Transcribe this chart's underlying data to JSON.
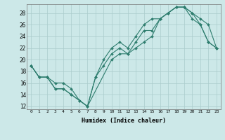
{
  "xlabel": "Humidex (Indice chaleur)",
  "line_color": "#2e7d6e",
  "bg_color": "#cce8e8",
  "grid_color": "#aacccc",
  "xlim": [
    -0.5,
    23.5
  ],
  "ylim": [
    11.5,
    29.5
  ],
  "xticks": [
    0,
    1,
    2,
    3,
    4,
    5,
    6,
    7,
    8,
    9,
    10,
    11,
    12,
    13,
    14,
    15,
    16,
    17,
    18,
    19,
    20,
    21,
    22,
    23
  ],
  "yticks": [
    12,
    14,
    16,
    18,
    20,
    22,
    24,
    26,
    28
  ],
  "line1_x": [
    0,
    1,
    2,
    3,
    4,
    5,
    6,
    7,
    8,
    9,
    10,
    11,
    12,
    13,
    14,
    15,
    16,
    17,
    18,
    19,
    20,
    21,
    22,
    23
  ],
  "line1_y": [
    19,
    17,
    17,
    15,
    15,
    14,
    13,
    12,
    17,
    19,
    21,
    22,
    21,
    23,
    25,
    25,
    27,
    28,
    29,
    29,
    27,
    26,
    23,
    22
  ],
  "line2_x": [
    0,
    1,
    2,
    3,
    4,
    5,
    6,
    7,
    8,
    9,
    10,
    11,
    12,
    13,
    14,
    15,
    16,
    17,
    18,
    19,
    20,
    21,
    22,
    23
  ],
  "line2_y": [
    19,
    17,
    17,
    16,
    16,
    15,
    13,
    12,
    17,
    20,
    22,
    23,
    22,
    24,
    26,
    27,
    27,
    28,
    29,
    29,
    28,
    26,
    23,
    22
  ],
  "line3_x": [
    0,
    1,
    2,
    3,
    4,
    5,
    6,
    7,
    10,
    11,
    12,
    13,
    14,
    15,
    16,
    17,
    18,
    19,
    20,
    21,
    22,
    23
  ],
  "line3_y": [
    19,
    17,
    17,
    15,
    15,
    14,
    13,
    12,
    20,
    21,
    21,
    22,
    23,
    24,
    27,
    28,
    29,
    29,
    28,
    27,
    26,
    22
  ]
}
